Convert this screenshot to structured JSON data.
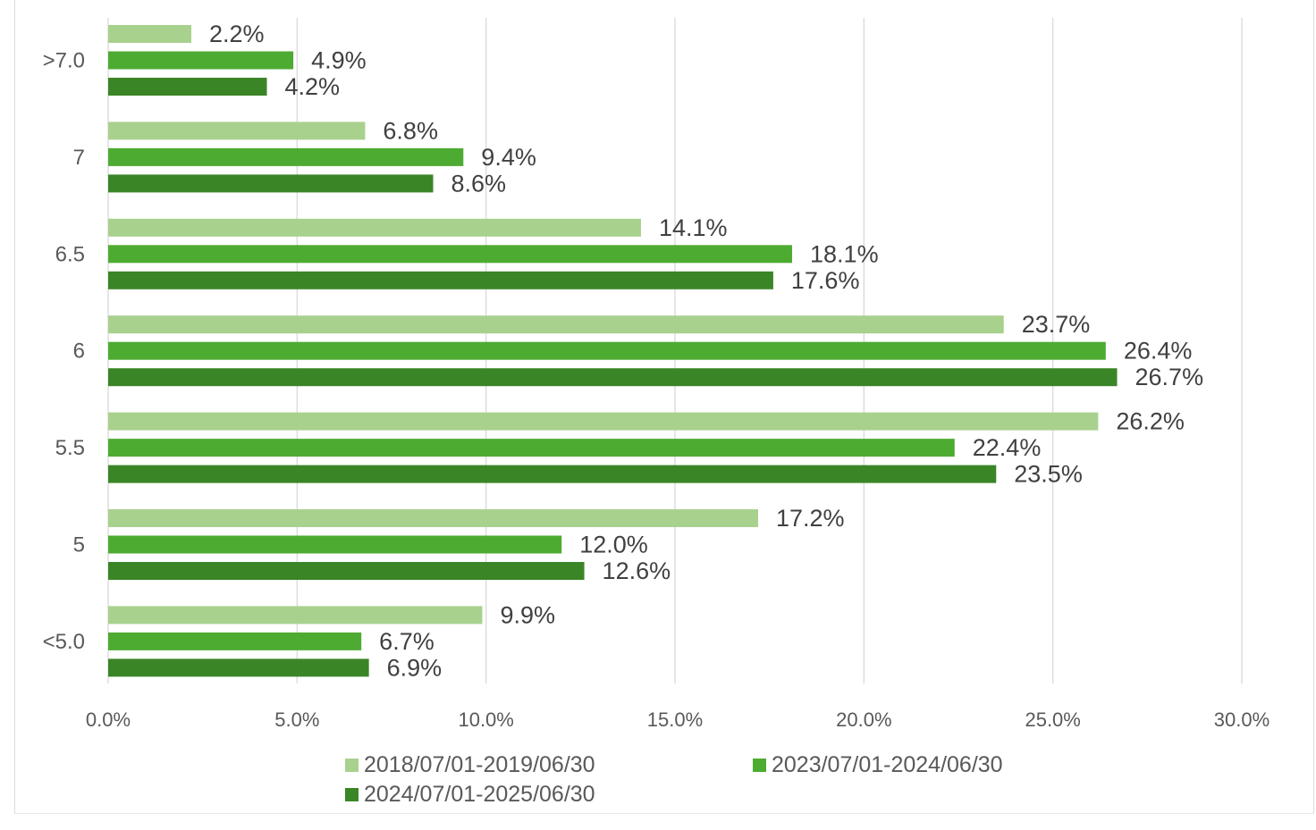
{
  "chart_data": {
    "type": "bar",
    "orientation": "horizontal",
    "title": "",
    "xlabel": "",
    "ylabel": "",
    "xlim": [
      0,
      30
    ],
    "x_ticks": [
      "0.0%",
      "5.0%",
      "10.0%",
      "15.0%",
      "20.0%",
      "25.0%",
      "30.0%"
    ],
    "grid": true,
    "legend_position": "bottom",
    "categories": [
      ">7.0",
      "7",
      "6.5",
      "6",
      "5.5",
      "5",
      "<5.0"
    ],
    "series": [
      {
        "name": "2018/07/01-2019/06/30",
        "color": "#a9d18e",
        "values": [
          2.2,
          6.8,
          14.1,
          23.7,
          26.2,
          17.2,
          9.9
        ],
        "labels": [
          "2.2%",
          "6.8%",
          "14.1%",
          "23.7%",
          "26.2%",
          "17.2%",
          "9.9%"
        ]
      },
      {
        "name": "2023/07/01-2024/06/30",
        "color": "#4eab32",
        "values": [
          4.9,
          9.4,
          18.1,
          26.4,
          22.4,
          12.0,
          6.7
        ],
        "labels": [
          "4.9%",
          "9.4%",
          "18.1%",
          "26.4%",
          "22.4%",
          "12.0%",
          "6.7%"
        ]
      },
      {
        "name": "2024/07/01-2025/06/30",
        "color": "#3a8526",
        "values": [
          4.2,
          8.6,
          17.6,
          26.7,
          23.5,
          12.6,
          6.9
        ],
        "labels": [
          "4.2%",
          "8.6%",
          "17.6%",
          "26.7%",
          "23.5%",
          "12.6%",
          "6.9%"
        ]
      }
    ]
  }
}
